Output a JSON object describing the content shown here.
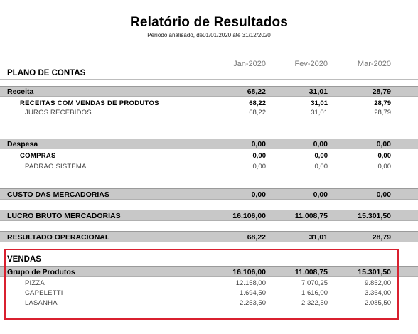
{
  "report": {
    "title": "Relatório de Resultados",
    "period": "Período analisado, de01/01/2020  até  31/12/2020",
    "section_title": "PLANO DE CONTAS",
    "months": [
      "Jan-2020",
      "Fev-2020",
      "Mar-2020"
    ]
  },
  "rows": [
    {
      "label": "Receita",
      "values": [
        "68,22",
        "31,01",
        "28,79"
      ]
    },
    {
      "label": "RECEITAS COM VENDAS DE PRODUTOS",
      "values": [
        "68,22",
        "31,01",
        "28,79"
      ]
    },
    {
      "label": "JUROS RECEBIDOS",
      "values": [
        "68,22",
        "31,01",
        "28,79"
      ]
    },
    {
      "label": "Despesa",
      "values": [
        "0,00",
        "0,00",
        "0,00"
      ]
    },
    {
      "label": "COMPRAS",
      "values": [
        "0,00",
        "0,00",
        "0,00"
      ]
    },
    {
      "label": "PADRAO SISTEMA",
      "values": [
        "0,00",
        "0,00",
        "0,00"
      ]
    },
    {
      "label": "CUSTO DAS MERCADORIAS",
      "values": [
        "0,00",
        "0,00",
        "0,00"
      ]
    },
    {
      "label": "LUCRO BRUTO MERCADORIAS",
      "values": [
        "16.106,00",
        "11.008,75",
        "15.301,50"
      ]
    },
    {
      "label": "RESULTADO OPERACIONAL",
      "values": [
        "68,22",
        "31,01",
        "28,79"
      ]
    }
  ],
  "vendas": {
    "title": "VENDAS",
    "rows": [
      {
        "label": "Grupo de Produtos",
        "values": [
          "16.106,00",
          "11.008,75",
          "15.301,50"
        ]
      },
      {
        "label": "PIZZA",
        "values": [
          "12.158,00",
          "7.070,25",
          "9.852,00"
        ]
      },
      {
        "label": "CAPELETTI",
        "values": [
          "1.694,50",
          "1.616,00",
          "3.364,00"
        ]
      },
      {
        "label": "LASANHA",
        "values": [
          "2.253,50",
          "2.322,50",
          "2.085,50"
        ]
      }
    ]
  }
}
